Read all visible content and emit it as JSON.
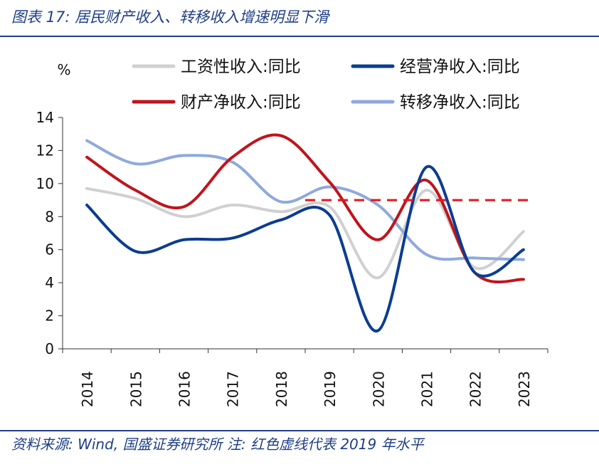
{
  "figure": {
    "title": "图表 17: 居民财产收入、转移收入增速明显下滑",
    "source": "资料来源: Wind, 国盛证券研究所 注: 红色虚线代表 2019 年水平"
  },
  "chart_data": {
    "type": "line",
    "ylabel": "%",
    "ylim": [
      0,
      14
    ],
    "yticks": [
      "0",
      "2",
      "4",
      "6",
      "8",
      "10",
      "12",
      "14"
    ],
    "categories": [
      "2014",
      "2015",
      "2016",
      "2017",
      "2018",
      "2019",
      "2020",
      "2021",
      "2022",
      "2023"
    ],
    "grid": false,
    "legend_position": "top",
    "series": [
      {
        "name": "工资性收入:同比",
        "color": "#d0d0d0",
        "values": [
          9.7,
          9.1,
          8.0,
          8.7,
          8.3,
          8.6,
          4.3,
          9.6,
          4.9,
          7.1
        ]
      },
      {
        "name": "经营净收入:同比",
        "color": "#0b3d91",
        "values": [
          8.7,
          5.9,
          6.6,
          6.7,
          7.8,
          8.1,
          1.1,
          11.0,
          4.6,
          6.0
        ]
      },
      {
        "name": "财产净收入:同比",
        "color": "#c0141c",
        "values": [
          11.6,
          9.6,
          8.6,
          11.6,
          12.9,
          10.1,
          6.6,
          10.2,
          4.6,
          4.2
        ]
      },
      {
        "name": "转移净收入:同比",
        "color": "#8fa9dc",
        "values": [
          12.6,
          11.2,
          11.7,
          11.3,
          8.9,
          9.8,
          8.7,
          5.7,
          5.5,
          5.4
        ]
      }
    ],
    "reference_line": {
      "value": 9.0,
      "from": "2018",
      "to": "2023",
      "color": "#e8141c",
      "style": "dashed"
    }
  }
}
